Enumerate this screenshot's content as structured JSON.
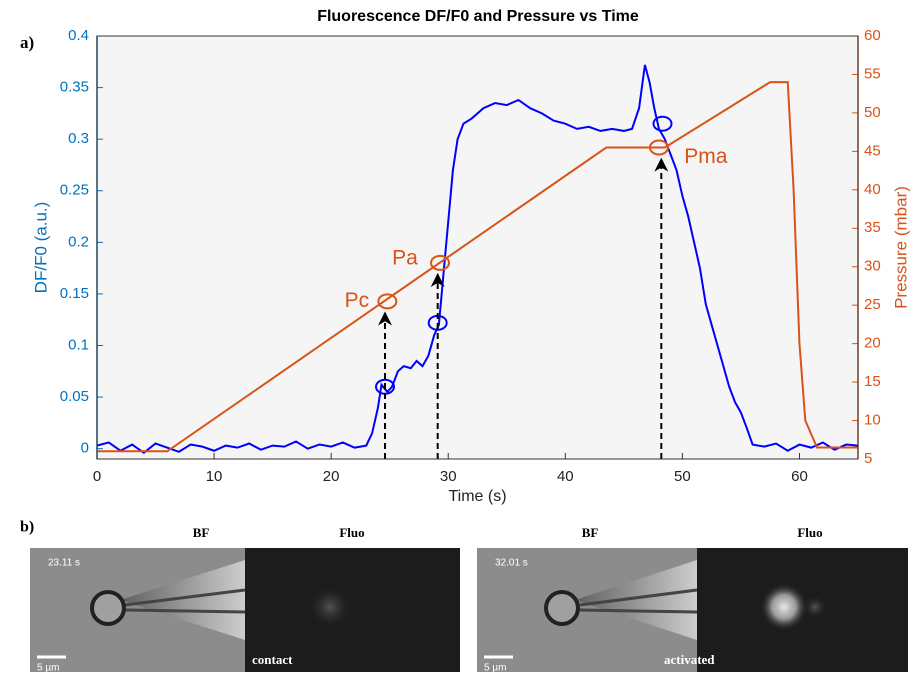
{
  "chart_data": {
    "type": "line",
    "panel_label": "a)",
    "title": "Fluorescence DF/F0 and Pressure vs Time",
    "xlabel": "Time (s)",
    "ylabel": "DF/F0  (a.u.)",
    "y2label": "Pressure  (mbar)",
    "xlim": [
      0,
      65
    ],
    "xticks": [
      0,
      10,
      20,
      30,
      40,
      50,
      60
    ],
    "ylim": [
      -0.01,
      0.4
    ],
    "yticks": [
      0,
      0.05,
      0.1,
      0.15,
      0.2,
      0.25,
      0.3,
      0.35,
      0.4
    ],
    "y2lim": [
      5,
      60
    ],
    "y2ticks": [
      5,
      10,
      15,
      20,
      25,
      30,
      35,
      40,
      45,
      50,
      55,
      60
    ],
    "y_color": "#0072bd",
    "y2_color": "#d95319",
    "series": [
      {
        "color": "#0000ff",
        "axis": "y",
        "x": [
          0,
          1,
          2,
          3,
          4,
          5,
          6,
          7,
          8,
          9,
          10,
          11,
          12,
          13,
          14,
          15,
          16,
          17,
          18,
          19,
          20,
          21,
          22,
          23,
          23.5,
          24,
          24.3,
          24.8,
          25.2,
          25.7,
          26.2,
          26.8,
          27.3,
          27.8,
          28.3,
          28.8,
          29.2,
          29.6,
          30,
          30.4,
          30.8,
          31.3,
          32,
          33,
          34,
          35,
          36,
          37,
          38,
          39,
          40,
          41,
          42,
          43,
          44,
          45,
          45.7,
          46.3,
          46.8,
          47.2,
          47.6,
          48,
          48.5,
          49,
          49.5,
          50,
          50.5,
          51,
          51.5,
          52,
          52.5,
          53,
          53.5,
          54,
          54.5,
          55,
          55.5,
          56,
          57,
          58,
          59,
          60,
          61,
          62,
          63,
          64,
          65
        ],
        "values": [
          0.003,
          0.006,
          -0.002,
          0.004,
          -0.004,
          0.005,
          0.001,
          -0.003,
          0.004,
          0.002,
          -0.002,
          0.003,
          0.001,
          0.005,
          -0.001,
          0.003,
          0.002,
          0.007,
          0,
          0.004,
          0.002,
          0.006,
          0.001,
          0.003,
          0.015,
          0.04,
          0.062,
          0.055,
          0.06,
          0.075,
          0.08,
          0.078,
          0.085,
          0.08,
          0.09,
          0.11,
          0.12,
          0.17,
          0.22,
          0.27,
          0.3,
          0.315,
          0.32,
          0.33,
          0.335,
          0.333,
          0.338,
          0.33,
          0.325,
          0.318,
          0.315,
          0.31,
          0.312,
          0.308,
          0.31,
          0.308,
          0.31,
          0.33,
          0.372,
          0.355,
          0.33,
          0.31,
          0.3,
          0.285,
          0.27,
          0.245,
          0.225,
          0.2,
          0.175,
          0.14,
          0.12,
          0.1,
          0.08,
          0.06,
          0.045,
          0.035,
          0.02,
          0.004,
          0.002,
          0.005,
          -0.002,
          0.004,
          0.001,
          0.006,
          -0.001,
          0.004,
          0.003
        ]
      },
      {
        "color": "#d95319",
        "axis": "y2",
        "x": [
          0,
          6,
          43.5,
          48.5,
          57.5,
          59,
          59.5,
          60,
          60.5,
          61.5,
          65
        ],
        "values": [
          6,
          6,
          45.5,
          45.5,
          54,
          54,
          40,
          20,
          10,
          6.5,
          6.5
        ]
      }
    ],
    "circles": [
      {
        "x": 24.6,
        "y": 0.06,
        "axis": "y",
        "color": "#0000ff"
      },
      {
        "x": 29.1,
        "y": 0.122,
        "axis": "y",
        "color": "#0000ff"
      },
      {
        "x": 48.3,
        "y": 0.315,
        "axis": "y",
        "color": "#0000ff"
      },
      {
        "x": 24.8,
        "y": 25.5,
        "axis": "y2",
        "color": "#d95319"
      },
      {
        "x": 29.3,
        "y": 30.5,
        "axis": "y2",
        "color": "#d95319"
      },
      {
        "x": 48,
        "y": 45.5,
        "axis": "y2",
        "color": "#d95319"
      }
    ],
    "arrows": [
      {
        "x": 24.6,
        "y2": 24
      },
      {
        "x": 29.1,
        "y2": 29
      },
      {
        "x": 48.2,
        "y2": 44
      }
    ],
    "annotations": [
      {
        "text": "Pc",
        "x": 22.2,
        "y2": 25.5
      },
      {
        "text": "Pa",
        "x": 26.3,
        "y2": 31
      },
      {
        "text": "Pma",
        "x": 52,
        "y2": 44.2
      }
    ]
  },
  "panel_b": {
    "label": "b)",
    "left": {
      "bf": "BF",
      "fluo": "Fluo",
      "time": "23.11 s",
      "scale": "5 µm",
      "state": "contact"
    },
    "right": {
      "bf": "BF",
      "fluo": "Fluo",
      "time": "32.01 s",
      "scale": "5 µm",
      "state": "activated"
    }
  }
}
